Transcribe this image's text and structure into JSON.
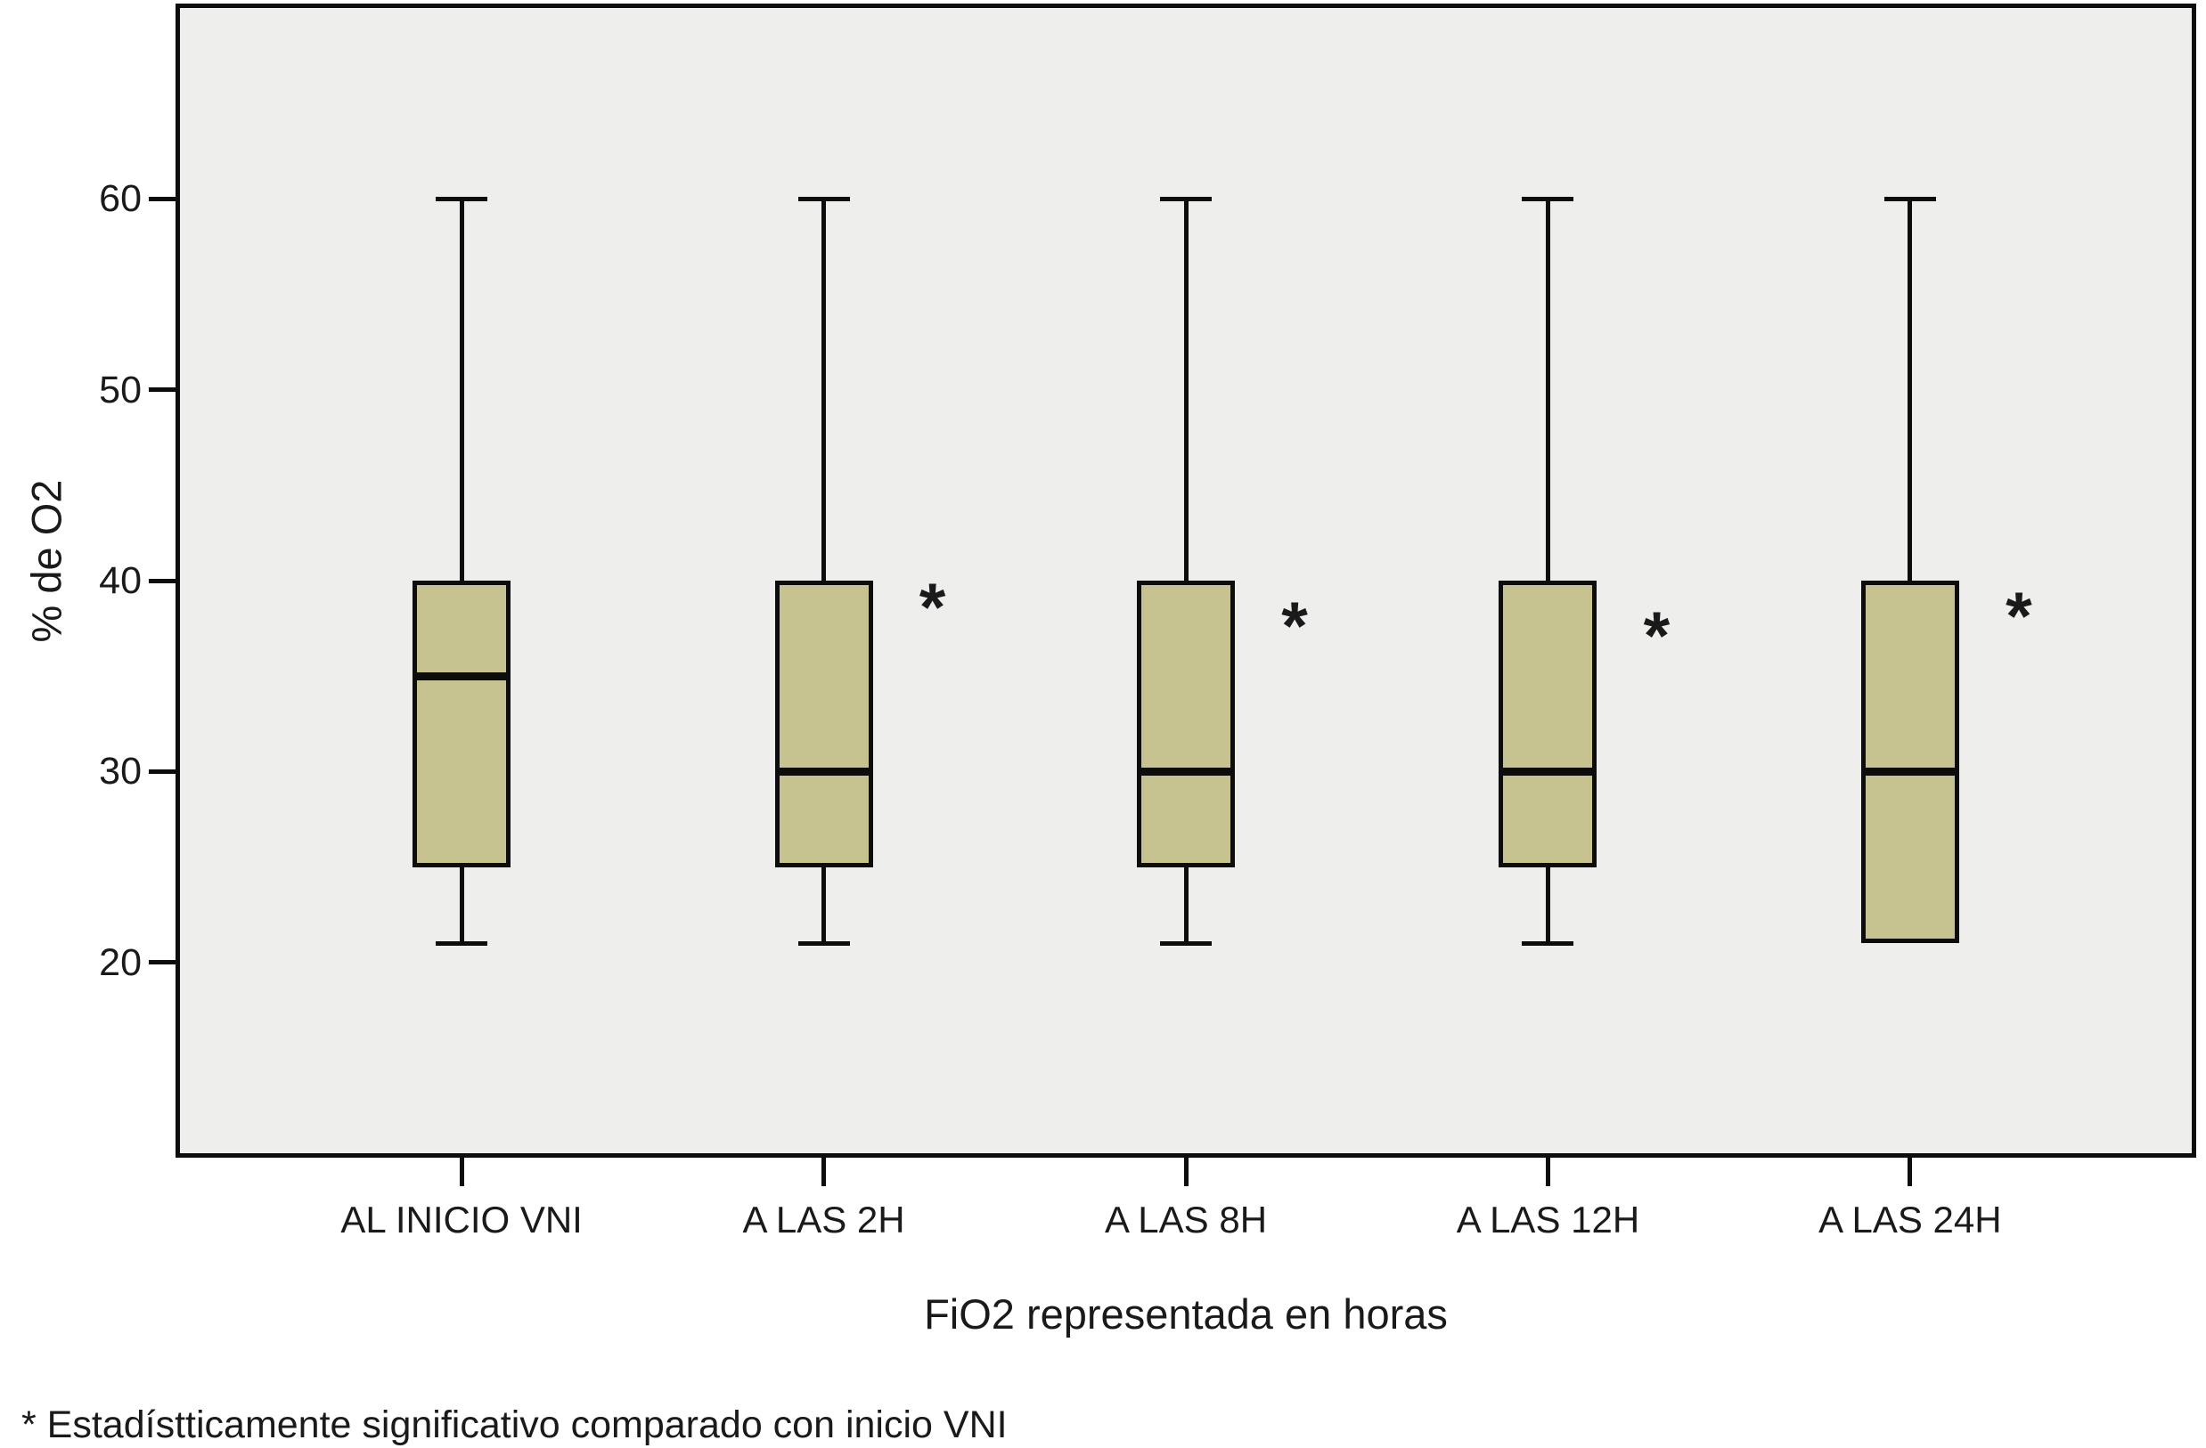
{
  "chart_data": {
    "type": "boxplot",
    "title": "",
    "xlabel": "FiO2 representada en horas",
    "ylabel": "% de O2",
    "footnote": "* Estadístticamente significativo comparado con inicio VNI",
    "ylim_display": [
      10,
      70
    ],
    "yticks": [
      60,
      50,
      40,
      30,
      20
    ],
    "grid": false,
    "legend": "none",
    "categories": [
      "AL INICIO VNI",
      "A LAS 2H",
      "A LAS 8H",
      "A LAS 12H",
      "A LAS 24H"
    ],
    "series": [
      {
        "category": "AL INICIO VNI",
        "whisker_low": 21,
        "q1": 25,
        "median": 35,
        "q3": 40,
        "whisker_high": 60,
        "outliers": []
      },
      {
        "category": "A LAS 2H",
        "whisker_low": 21,
        "q1": 25,
        "median": 30,
        "q3": 40,
        "whisker_high": 60,
        "outliers": [
          39.5
        ]
      },
      {
        "category": "A LAS 8H",
        "whisker_low": 21,
        "q1": 25,
        "median": 30,
        "q3": 40,
        "whisker_high": 60,
        "outliers": [
          38.5
        ]
      },
      {
        "category": "A LAS 12H",
        "whisker_low": 21,
        "q1": 25,
        "median": 30,
        "q3": 40,
        "whisker_high": 60,
        "outliers": [
          38
        ]
      },
      {
        "category": "A LAS 24H",
        "whisker_low": 21,
        "q1": 21,
        "median": 30,
        "q3": 40,
        "whisker_high": 60,
        "outliers": [
          39
        ]
      }
    ],
    "outlier_marker": "*",
    "colors": {
      "box_fill": "#c7c391",
      "plot_background": "#eeeeec",
      "line": "#0d0d0d",
      "page_background": "#ffffff"
    }
  }
}
